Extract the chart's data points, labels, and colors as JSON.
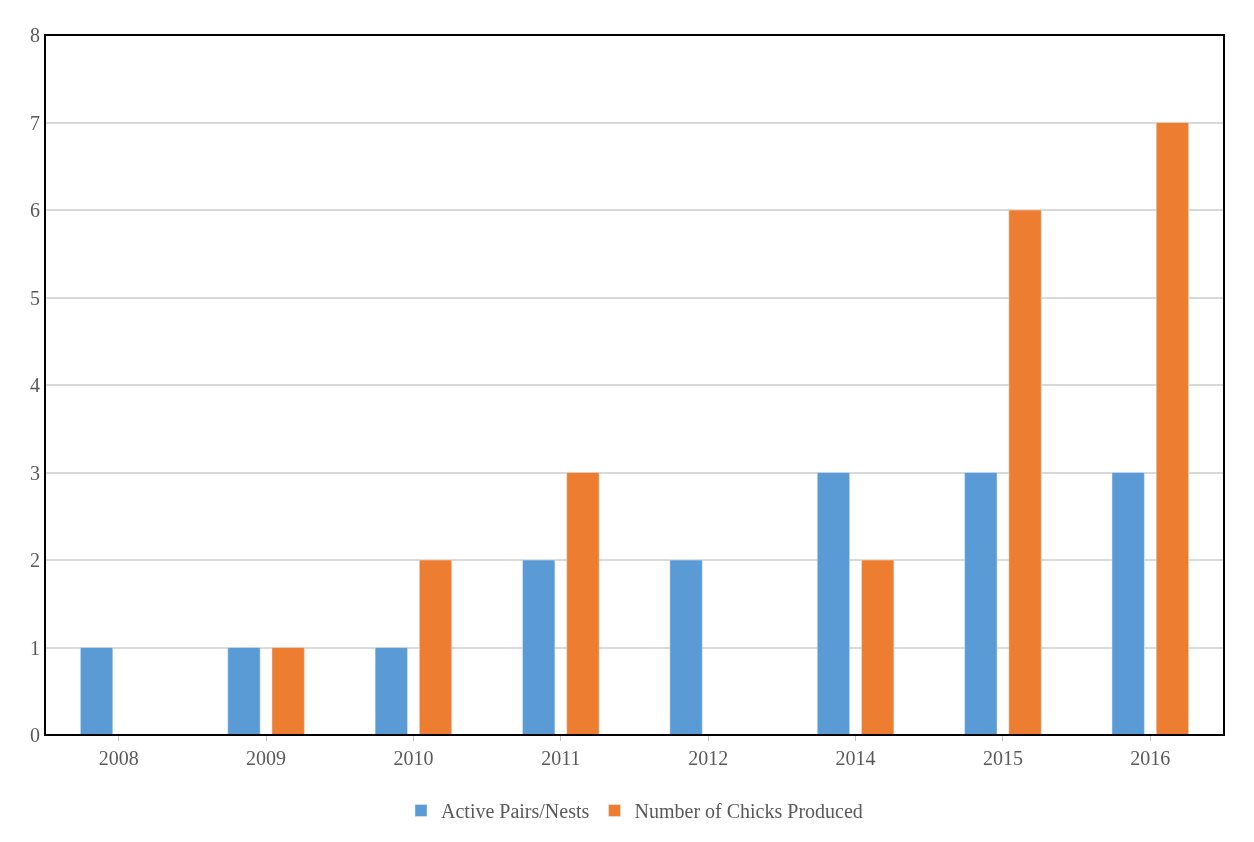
{
  "chart_data": {
    "type": "bar",
    "categories": [
      "2008",
      "2009",
      "2010",
      "2011",
      "2012",
      "2014",
      "2015",
      "2016"
    ],
    "series": [
      {
        "name": "Active Pairs/Nests",
        "color": "#5b9bd5",
        "values": [
          1,
          1,
          1,
          2,
          2,
          3,
          3,
          3
        ]
      },
      {
        "name": "Number of Chicks Produced",
        "color": "#ed7d31",
        "values": [
          null,
          1,
          2,
          3,
          null,
          2,
          6,
          7
        ]
      }
    ],
    "ylim": [
      0,
      8
    ],
    "yticks": [
      0,
      1,
      2,
      3,
      4,
      5,
      6,
      7,
      8
    ],
    "grid": "y",
    "legend": "bottom"
  }
}
